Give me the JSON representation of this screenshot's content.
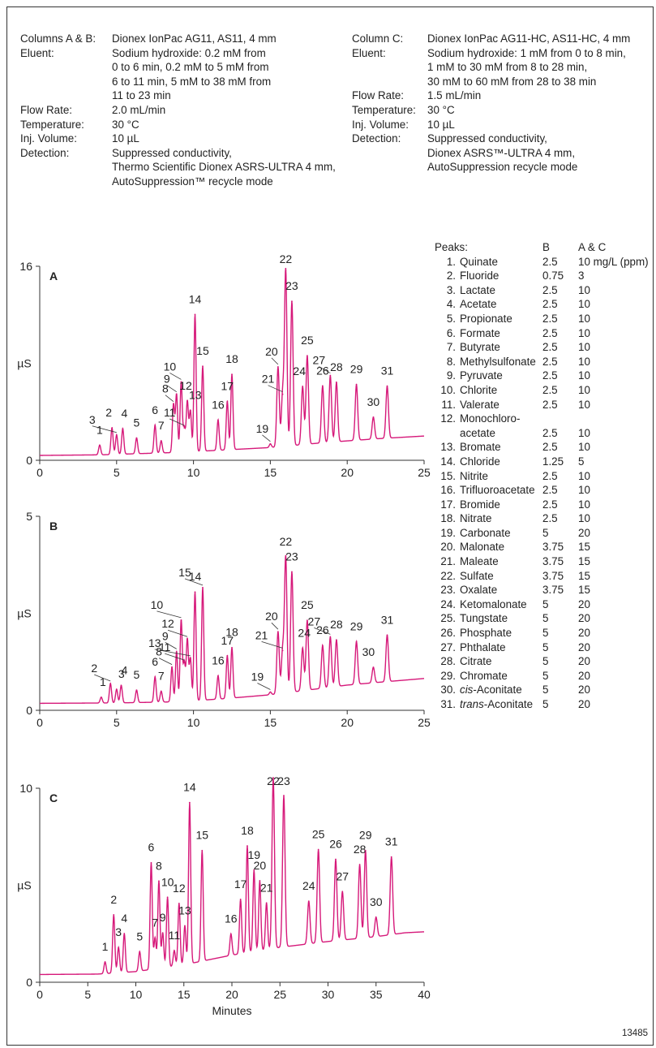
{
  "conditions_ab": {
    "rows": [
      {
        "label": "Columns A & B:",
        "lines": [
          "Dionex IonPac AG11, AS11, 4 mm"
        ]
      },
      {
        "label": "Eluent:",
        "lines": [
          "Sodium hydroxide: 0.2 mM from",
          "0 to 6 min, 0.2 mM to 5 mM from",
          "6 to 11 min, 5 mM to 38 mM from",
          "11 to 23 min"
        ]
      },
      {
        "label": "Flow Rate:",
        "lines": [
          "2.0 mL/min"
        ]
      },
      {
        "label": "Temperature:",
        "lines": [
          "30 °C"
        ]
      },
      {
        "label": "Inj. Volume:",
        "lines": [
          "10 µL"
        ]
      },
      {
        "label": "Detection:",
        "lines": [
          "Suppressed conductivity,",
          "Thermo Scientific Dionex ASRS-ULTRA 4 mm,",
          "AutoSuppression™ recycle mode"
        ]
      }
    ]
  },
  "conditions_c": {
    "rows": [
      {
        "label": "Column C:",
        "lines": [
          "Dionex IonPac AG11-HC, AS11-HC, 4 mm"
        ]
      },
      {
        "label": "Eluent:",
        "lines": [
          "Sodium hydroxide: 1 mM from 0 to 8 min,",
          "1 mM to 30 mM from 8 to 28 min,",
          "30 mM to 60 mM from 28 to 38 min"
        ]
      },
      {
        "label": "Flow Rate:",
        "lines": [
          "1.5 mL/min"
        ]
      },
      {
        "label": "Temperature:",
        "lines": [
          "30 °C"
        ]
      },
      {
        "label": "Inj. Volume:",
        "lines": [
          "10 µL"
        ]
      },
      {
        "label": "Detection:",
        "lines": [
          "Suppressed conductivity,",
          "Dionex ASRS™-ULTRA 4 mm,",
          "AutoSuppression recycle mode"
        ]
      }
    ]
  },
  "peaks_table": {
    "header": {
      "label": "Peaks:",
      "col_b": "B",
      "col_ac": "A & C",
      "unit": "mg/L (ppm)"
    },
    "rows": [
      {
        "num": "1.",
        "name": "Quinate",
        "b": "2.5",
        "ac": "10"
      },
      {
        "num": "2.",
        "name": "Fluoride",
        "b": "0.75",
        "ac": "3"
      },
      {
        "num": "3.",
        "name": "Lactate",
        "b": "2.5",
        "ac": "10"
      },
      {
        "num": "4.",
        "name": "Acetate",
        "b": "2.5",
        "ac": "10"
      },
      {
        "num": "5.",
        "name": "Propionate",
        "b": "2.5",
        "ac": "10"
      },
      {
        "num": "6.",
        "name": "Formate",
        "b": "2.5",
        "ac": "10"
      },
      {
        "num": "7.",
        "name": "Butyrate",
        "b": "2.5",
        "ac": "10"
      },
      {
        "num": "8.",
        "name": "Methylsulfonate",
        "b": "2.5",
        "ac": "10"
      },
      {
        "num": "9.",
        "name": "Pyruvate",
        "b": "2.5",
        "ac": "10"
      },
      {
        "num": "10.",
        "name": "Chlorite",
        "b": "2.5",
        "ac": "10"
      },
      {
        "num": "11.",
        "name": "Valerate",
        "b": "2.5",
        "ac": "10"
      },
      {
        "num": "12.",
        "name": "Monochloro-",
        "b": "",
        "ac": ""
      },
      {
        "num": "",
        "name": "acetate",
        "b": "2.5",
        "ac": "10"
      },
      {
        "num": "13.",
        "name": "Bromate",
        "b": "2.5",
        "ac": "10"
      },
      {
        "num": "14.",
        "name": "Chloride",
        "b": "1.25",
        "ac": "5"
      },
      {
        "num": "15.",
        "name": "Nitrite",
        "b": "2.5",
        "ac": "10"
      },
      {
        "num": "16.",
        "name": "Trifluoroacetate",
        "b": "2.5",
        "ac": "10"
      },
      {
        "num": "17.",
        "name": "Bromide",
        "b": "2.5",
        "ac": "10"
      },
      {
        "num": "18.",
        "name": "Nitrate",
        "b": "2.5",
        "ac": "10"
      },
      {
        "num": "19.",
        "name": "Carbonate",
        "b": "5",
        "ac": "20"
      },
      {
        "num": "20.",
        "name": "Malonate",
        "b": "3.75",
        "ac": "15"
      },
      {
        "num": "21.",
        "name": "Maleate",
        "b": "3.75",
        "ac": "15"
      },
      {
        "num": "22.",
        "name": "Sulfate",
        "b": "3.75",
        "ac": "15"
      },
      {
        "num": "23.",
        "name": "Oxalate",
        "b": "3.75",
        "ac": "15"
      },
      {
        "num": "24.",
        "name": "Ketomalonate",
        "b": "5",
        "ac": "20"
      },
      {
        "num": "25.",
        "name": "Tungstate",
        "b": "5",
        "ac": "20"
      },
      {
        "num": "26.",
        "name": "Phosphate",
        "b": "5",
        "ac": "20"
      },
      {
        "num": "27.",
        "name": "Phthalate",
        "b": "5",
        "ac": "20"
      },
      {
        "num": "28.",
        "name": "Citrate",
        "b": "5",
        "ac": "20"
      },
      {
        "num": "29.",
        "name": "Chromate",
        "b": "5",
        "ac": "20"
      },
      {
        "num": "30.",
        "name": "cis-Aconitate",
        "b": "5",
        "ac": "20",
        "italic_prefix": "cis"
      },
      {
        "num": "31.",
        "name": "trans-Aconitate",
        "b": "5",
        "ac": "20",
        "italic_prefix": "trans"
      }
    ]
  },
  "doc_id": "13485",
  "colors": {
    "trace": "#d6197a",
    "axis": "#333333",
    "text": "#222222"
  },
  "chart_data": [
    {
      "type": "line",
      "panel_label": "A",
      "xlabel": "",
      "ylabel": "µS",
      "xlim": [
        0,
        25
      ],
      "ylim": [
        0,
        16
      ],
      "xticks": [
        0,
        5,
        10,
        15,
        20,
        25
      ],
      "yticks": [
        0,
        16
      ],
      "baseline": [
        [
          0,
          0.4
        ],
        [
          4,
          0.45
        ],
        [
          9,
          0.65
        ],
        [
          12,
          0.85
        ],
        [
          15,
          1.05
        ],
        [
          18,
          1.4
        ],
        [
          20,
          1.6
        ],
        [
          22,
          1.78
        ],
        [
          25,
          2.0
        ]
      ],
      "peaks": [
        {
          "label": "1",
          "rt": 3.9,
          "height": 0.8
        },
        {
          "label": "2",
          "rt": 4.7,
          "height": 2.2
        },
        {
          "label": "3",
          "rt": 5.0,
          "height": 1.6
        },
        {
          "label": "4",
          "rt": 5.4,
          "height": 2.1
        },
        {
          "label": "5",
          "rt": 6.3,
          "height": 1.3
        },
        {
          "label": "6",
          "rt": 7.5,
          "height": 2.3
        },
        {
          "label": "7",
          "rt": 7.9,
          "height": 1.0
        },
        {
          "label": "8",
          "rt": 8.7,
          "height": 4.0
        },
        {
          "label": "9",
          "rt": 8.9,
          "height": 4.8
        },
        {
          "label": "10",
          "rt": 9.2,
          "height": 5.8
        },
        {
          "label": "11",
          "rt": 9.4,
          "height": 2.0
        },
        {
          "label": "12",
          "rt": 9.6,
          "height": 4.2
        },
        {
          "label": "13",
          "rt": 9.8,
          "height": 3.4
        },
        {
          "label": "14",
          "rt": 10.1,
          "height": 11.3
        },
        {
          "label": "15",
          "rt": 10.6,
          "height": 7.0
        },
        {
          "label": "16",
          "rt": 11.6,
          "height": 2.5
        },
        {
          "label": "17",
          "rt": 12.2,
          "height": 4.0
        },
        {
          "label": "18",
          "rt": 12.5,
          "height": 6.2
        },
        {
          "label": "19",
          "rt": 15.0,
          "height": 0.3
        },
        {
          "label": "20",
          "rt": 15.5,
          "height": 6.6
        },
        {
          "label": "21",
          "rt": 15.8,
          "height": 4.3
        },
        {
          "label": "22",
          "rt": 16.0,
          "height": 14.5
        },
        {
          "label": "23",
          "rt": 16.4,
          "height": 11.9
        },
        {
          "label": "24",
          "rt": 17.1,
          "height": 4.8
        },
        {
          "label": "25",
          "rt": 17.4,
          "height": 7.3
        },
        {
          "label": "26",
          "rt": 18.4,
          "height": 4.7
        },
        {
          "label": "27",
          "rt": 18.9,
          "height": 5.5
        },
        {
          "label": "28",
          "rt": 19.3,
          "height": 4.9
        },
        {
          "label": "29",
          "rt": 20.6,
          "height": 4.6
        },
        {
          "label": "30",
          "rt": 21.7,
          "height": 1.8
        },
        {
          "label": "31",
          "rt": 22.6,
          "height": 4.3
        }
      ]
    },
    {
      "type": "line",
      "panel_label": "B",
      "xlabel": "",
      "ylabel": "µS",
      "xlim": [
        0,
        25
      ],
      "ylim": [
        0,
        5
      ],
      "xticks": [
        0,
        5,
        10,
        15,
        20,
        25
      ],
      "yticks": [
        0,
        5
      ],
      "baseline": [
        [
          0,
          0.18
        ],
        [
          5,
          0.19
        ],
        [
          9,
          0.22
        ],
        [
          12,
          0.3
        ],
        [
          15,
          0.4
        ],
        [
          18,
          0.55
        ],
        [
          20,
          0.65
        ],
        [
          22,
          0.72
        ],
        [
          25,
          0.82
        ]
      ],
      "peaks": [
        {
          "label": "1",
          "rt": 4.0,
          "height": 0.15
        },
        {
          "label": "2",
          "rt": 4.6,
          "height": 0.5
        },
        {
          "label": "3",
          "rt": 5.0,
          "height": 0.35
        },
        {
          "label": "4",
          "rt": 5.3,
          "height": 0.45
        },
        {
          "label": "5",
          "rt": 6.3,
          "height": 0.32
        },
        {
          "label": "6",
          "rt": 7.5,
          "height": 0.65
        },
        {
          "label": "7",
          "rt": 7.9,
          "height": 0.28
        },
        {
          "label": "8",
          "rt": 8.6,
          "height": 0.9
        },
        {
          "label": "9",
          "rt": 8.9,
          "height": 1.3
        },
        {
          "label": "10",
          "rt": 9.2,
          "height": 2.1
        },
        {
          "label": "11",
          "rt": 9.4,
          "height": 1.0
        },
        {
          "label": "12",
          "rt": 9.6,
          "height": 1.6
        },
        {
          "label": "13",
          "rt": 9.8,
          "height": 1.1
        },
        {
          "label": "14",
          "rt": 10.1,
          "height": 2.8
        },
        {
          "label": "15",
          "rt": 10.6,
          "height": 2.9
        },
        {
          "label": "16",
          "rt": 11.6,
          "height": 0.6
        },
        {
          "label": "17",
          "rt": 12.2,
          "height": 1.1
        },
        {
          "label": "18",
          "rt": 12.5,
          "height": 1.3
        },
        {
          "label": "19",
          "rt": 15.0,
          "height": 0.07
        },
        {
          "label": "20",
          "rt": 15.5,
          "height": 1.6
        },
        {
          "label": "21",
          "rt": 15.8,
          "height": 1.1
        },
        {
          "label": "22",
          "rt": 16.0,
          "height": 3.5
        },
        {
          "label": "23",
          "rt": 16.4,
          "height": 3.1
        },
        {
          "label": "24",
          "rt": 17.1,
          "height": 1.1
        },
        {
          "label": "25",
          "rt": 17.4,
          "height": 1.8
        },
        {
          "label": "26",
          "rt": 18.4,
          "height": 1.1
        },
        {
          "label": "27",
          "rt": 18.9,
          "height": 1.3
        },
        {
          "label": "28",
          "rt": 19.3,
          "height": 1.2
        },
        {
          "label": "29",
          "rt": 20.6,
          "height": 1.1
        },
        {
          "label": "30",
          "rt": 21.7,
          "height": 0.4
        },
        {
          "label": "31",
          "rt": 22.6,
          "height": 1.2
        }
      ]
    },
    {
      "type": "line",
      "panel_label": "C",
      "xlabel": "Minutes",
      "ylabel": "µS",
      "xlim": [
        0,
        40
      ],
      "ylim": [
        0,
        10
      ],
      "xticks": [
        0,
        5,
        10,
        15,
        20,
        25,
        30,
        35,
        40
      ],
      "yticks": [
        0,
        10
      ],
      "baseline": [
        [
          0,
          0.4
        ],
        [
          6,
          0.42
        ],
        [
          10,
          0.55
        ],
        [
          15,
          0.9
        ],
        [
          20,
          1.4
        ],
        [
          25,
          1.8
        ],
        [
          30,
          2.1
        ],
        [
          35,
          2.35
        ],
        [
          38,
          2.55
        ],
        [
          40,
          2.6
        ]
      ],
      "peaks": [
        {
          "label": "1",
          "rt": 6.8,
          "height": 0.6
        },
        {
          "label": "2",
          "rt": 7.7,
          "height": 3.0
        },
        {
          "label": "3",
          "rt": 8.2,
          "height": 1.3
        },
        {
          "label": "4",
          "rt": 8.8,
          "height": 2.0
        },
        {
          "label": "5",
          "rt": 10.4,
          "height": 1.0
        },
        {
          "label": "6",
          "rt": 11.6,
          "height": 5.5
        },
        {
          "label": "7",
          "rt": 12.0,
          "height": 1.6
        },
        {
          "label": "8",
          "rt": 12.4,
          "height": 4.5
        },
        {
          "label": "9",
          "rt": 12.8,
          "height": 1.8
        },
        {
          "label": "10",
          "rt": 13.3,
          "height": 3.6
        },
        {
          "label": "11",
          "rt": 14.0,
          "height": 0.8
        },
        {
          "label": "12",
          "rt": 14.5,
          "height": 3.2
        },
        {
          "label": "13",
          "rt": 15.1,
          "height": 2.0
        },
        {
          "label": "14",
          "rt": 15.6,
          "height": 8.3
        },
        {
          "label": "15",
          "rt": 16.9,
          "height": 5.7
        },
        {
          "label": "16",
          "rt": 19.9,
          "height": 1.1
        },
        {
          "label": "17",
          "rt": 20.9,
          "height": 2.8
        },
        {
          "label": "18",
          "rt": 21.6,
          "height": 5.5
        },
        {
          "label": "19",
          "rt": 22.3,
          "height": 4.2
        },
        {
          "label": "20",
          "rt": 22.9,
          "height": 3.6
        },
        {
          "label": "21",
          "rt": 23.6,
          "height": 2.4
        },
        {
          "label": "22",
          "rt": 24.3,
          "height": 8.8
        },
        {
          "label": "23",
          "rt": 25.4,
          "height": 7.8
        },
        {
          "label": "24",
          "rt": 28.0,
          "height": 2.2
        },
        {
          "label": "25",
          "rt": 29.0,
          "height": 4.8
        },
        {
          "label": "26",
          "rt": 30.8,
          "height": 4.2
        },
        {
          "label": "27",
          "rt": 31.5,
          "height": 2.5
        },
        {
          "label": "28",
          "rt": 33.3,
          "height": 3.8
        },
        {
          "label": "29",
          "rt": 33.9,
          "height": 4.5
        },
        {
          "label": "30",
          "rt": 35.0,
          "height": 1.0
        },
        {
          "label": "31",
          "rt": 36.6,
          "height": 4.0
        }
      ]
    }
  ]
}
